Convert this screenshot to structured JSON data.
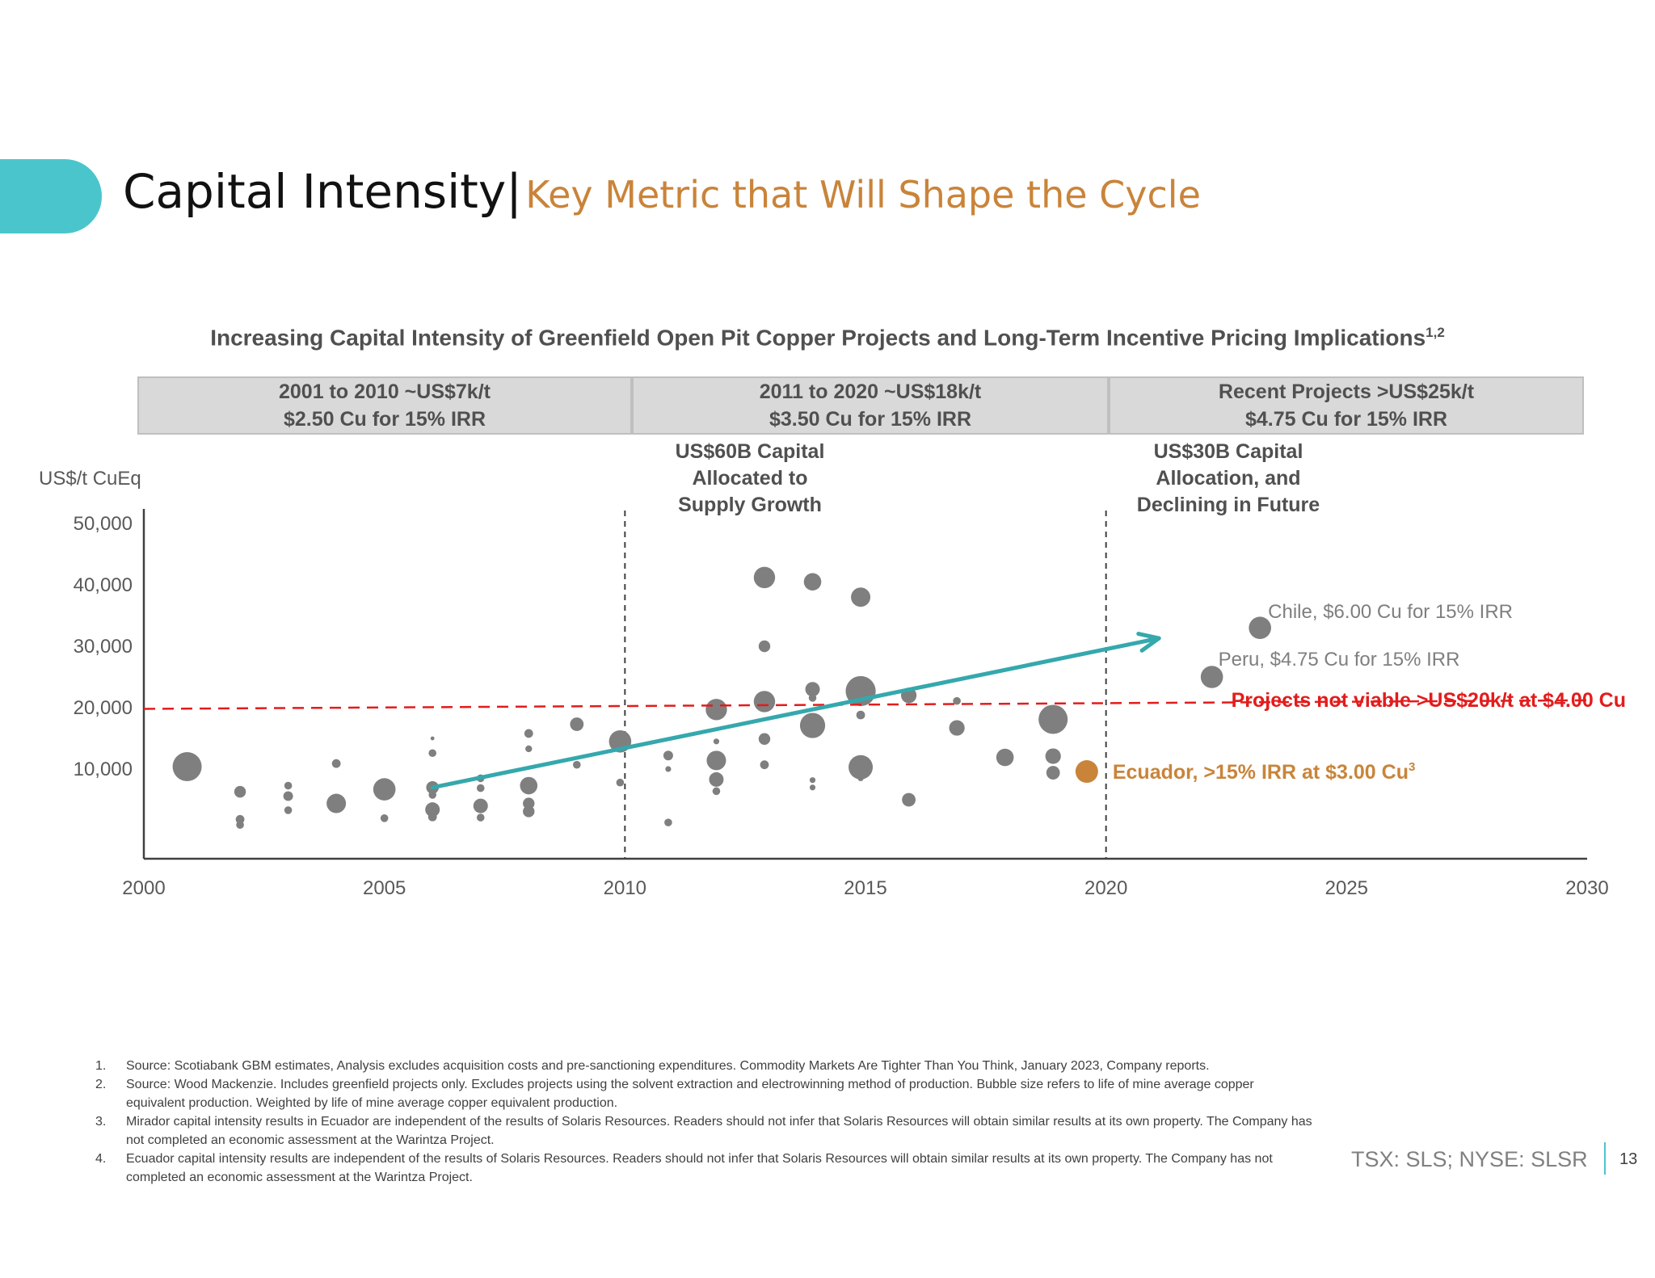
{
  "header": {
    "title": "Capital Intensity|",
    "subtitle": "Key Metric that Will Shape the Cycle"
  },
  "chart_title": "Increasing Capital Intensity of Greenfield Open Pit Copper Projects and Long-Term Incentive Pricing Implications",
  "chart_title_sup": "1,2",
  "bands": [
    {
      "line1": "2001 to 2010 ~US$7k/t",
      "line2": "$2.50 Cu for 15% IRR"
    },
    {
      "line1": "2011 to 2020 ~US$18k/t",
      "line2": "$3.50 Cu for 15% IRR"
    },
    {
      "line1": "Recent Projects >US$25k/t",
      "line2": "$4.75 Cu for 15% IRR"
    }
  ],
  "notes": [
    {
      "lines": [
        "US$60B Capital",
        "Allocated to",
        "Supply Growth"
      ]
    },
    {
      "lines": [
        "US$30B Capital",
        "Allocation, and",
        "Declining in Future"
      ]
    }
  ],
  "chart_data": {
    "type": "scatter",
    "title": "Increasing Capital Intensity of Greenfield Open Pit Copper Projects and Long-Term Incentive Pricing Implications",
    "ylabel": "US$/t CuEq",
    "xlabel": "",
    "xlim": [
      2000,
      2030
    ],
    "ylim": [
      0,
      50000
    ],
    "x_ticks": [
      2000,
      2005,
      2010,
      2015,
      2020,
      2025,
      2030
    ],
    "y_ticks": [
      10000,
      20000,
      30000,
      40000,
      50000
    ],
    "y_tick_labels": [
      "10,000",
      "20,000",
      "30,000",
      "40,000",
      "50,000"
    ],
    "grid": false,
    "bubble_color": "#7f7f7f",
    "series": [
      {
        "points": [
          {
            "x": 2000.9,
            "y": 10400,
            "s": 3
          },
          {
            "x": 2002.0,
            "y": 6300,
            "s": 1.2
          },
          {
            "x": 2002.0,
            "y": 1800,
            "s": 0.9
          },
          {
            "x": 2002.0,
            "y": 900,
            "s": 0.8
          },
          {
            "x": 2003.0,
            "y": 7300,
            "s": 0.8
          },
          {
            "x": 2003.0,
            "y": 5600,
            "s": 1
          },
          {
            "x": 2003.0,
            "y": 3300,
            "s": 0.8
          },
          {
            "x": 2004.0,
            "y": 10900,
            "s": 0.9
          },
          {
            "x": 2004.0,
            "y": 4400,
            "s": 2
          },
          {
            "x": 2005.0,
            "y": 6700,
            "s": 2.3
          },
          {
            "x": 2005.0,
            "y": 2000,
            "s": 0.8
          },
          {
            "x": 2006.0,
            "y": 15000,
            "s": 0.4
          },
          {
            "x": 2006.0,
            "y": 12600,
            "s": 0.8
          },
          {
            "x": 2006.0,
            "y": 7000,
            "s": 1.3
          },
          {
            "x": 2006.0,
            "y": 5800,
            "s": 0.8
          },
          {
            "x": 2006.0,
            "y": 3400,
            "s": 1.5
          },
          {
            "x": 2006.0,
            "y": 2200,
            "s": 0.9
          },
          {
            "x": 2007.0,
            "y": 8500,
            "s": 0.8
          },
          {
            "x": 2007.0,
            "y": 6900,
            "s": 0.8
          },
          {
            "x": 2007.0,
            "y": 4000,
            "s": 1.5
          },
          {
            "x": 2007.0,
            "y": 2100,
            "s": 0.8
          },
          {
            "x": 2008.0,
            "y": 15800,
            "s": 0.9
          },
          {
            "x": 2008.0,
            "y": 13300,
            "s": 0.7
          },
          {
            "x": 2008.0,
            "y": 7300,
            "s": 1.8
          },
          {
            "x": 2008.0,
            "y": 4400,
            "s": 1.2
          },
          {
            "x": 2008.0,
            "y": 3100,
            "s": 1.2
          },
          {
            "x": 2009.0,
            "y": 17300,
            "s": 1.4
          },
          {
            "x": 2009.0,
            "y": 10700,
            "s": 0.8
          },
          {
            "x": 2009.9,
            "y": 14500,
            "s": 2.3
          },
          {
            "x": 2009.9,
            "y": 7800,
            "s": 0.8
          },
          {
            "x": 2010.9,
            "y": 12200,
            "s": 1
          },
          {
            "x": 2010.9,
            "y": 10000,
            "s": 0.6
          },
          {
            "x": 2010.9,
            "y": 1300,
            "s": 0.8
          },
          {
            "x": 2011.9,
            "y": 19700,
            "s": 2.2
          },
          {
            "x": 2011.9,
            "y": 14500,
            "s": 0.6
          },
          {
            "x": 2011.9,
            "y": 11400,
            "s": 2
          },
          {
            "x": 2011.9,
            "y": 8300,
            "s": 1.5
          },
          {
            "x": 2011.9,
            "y": 6400,
            "s": 0.8
          },
          {
            "x": 2012.9,
            "y": 41200,
            "s": 2.2
          },
          {
            "x": 2012.9,
            "y": 30000,
            "s": 1.2
          },
          {
            "x": 2012.9,
            "y": 21000,
            "s": 2.2
          },
          {
            "x": 2012.9,
            "y": 14900,
            "s": 1.2
          },
          {
            "x": 2012.9,
            "y": 10700,
            "s": 0.9
          },
          {
            "x": 2013.9,
            "y": 40500,
            "s": 1.8
          },
          {
            "x": 2013.9,
            "y": 23000,
            "s": 1.5
          },
          {
            "x": 2013.9,
            "y": 21600,
            "s": 0.8
          },
          {
            "x": 2013.9,
            "y": 17100,
            "s": 2.6
          },
          {
            "x": 2013.9,
            "y": 8200,
            "s": 0.6
          },
          {
            "x": 2013.9,
            "y": 7000,
            "s": 0.6
          },
          {
            "x": 2014.9,
            "y": 38000,
            "s": 2
          },
          {
            "x": 2014.9,
            "y": 22700,
            "s": 3.1
          },
          {
            "x": 2014.9,
            "y": 18800,
            "s": 0.9
          },
          {
            "x": 2014.9,
            "y": 10300,
            "s": 2.5
          },
          {
            "x": 2014.9,
            "y": 8500,
            "s": 0.6
          },
          {
            "x": 2015.9,
            "y": 22000,
            "s": 1.6
          },
          {
            "x": 2015.9,
            "y": 5000,
            "s": 1.4
          },
          {
            "x": 2016.9,
            "y": 21100,
            "s": 0.8
          },
          {
            "x": 2016.9,
            "y": 16700,
            "s": 1.6
          },
          {
            "x": 2017.9,
            "y": 11900,
            "s": 1.8
          },
          {
            "x": 2018.9,
            "y": 18100,
            "s": 3
          },
          {
            "x": 2018.9,
            "y": 12100,
            "s": 1.6
          },
          {
            "x": 2018.9,
            "y": 9400,
            "s": 1.4
          },
          {
            "x": 2022.2,
            "y": 25000,
            "s": 2.3
          },
          {
            "x": 2023.2,
            "y": 33000,
            "s": 2.3
          }
        ]
      }
    ],
    "highlight": {
      "label": "Ecuador, >15% IRR at $3.00 Cu",
      "sup": "3",
      "x": 2019.6,
      "y": 9600,
      "color": "#c9843a"
    },
    "annotations": [
      {
        "label": "Chile, $6.00 Cu for 15% IRR",
        "x": 2023.2,
        "y": 33000
      },
      {
        "label": "Peru, $4.75 Cu for 15% IRR",
        "x": 2022.2,
        "y": 25000
      }
    ],
    "threshold": {
      "label": "Projects not viable >US$20k/t at $4.00 Cu",
      "color": "#e31c1c",
      "from": {
        "x": 2000,
        "y": 19800
      },
      "to": {
        "x": 2030,
        "y": 21200
      }
    },
    "trend": {
      "color": "#35a8ad",
      "from": {
        "x": 2006,
        "y": 7000
      },
      "to": {
        "x": 2021.1,
        "y": 31300
      }
    },
    "vlines": [
      2010,
      2020
    ]
  },
  "footnotes": [
    {
      "num": "1.",
      "text": "Source: Scotiabank GBM estimates, Analysis excludes acquisition costs and pre-sanctioning expenditures. Commodity Markets Are Tighter Than You Think, January 2023, Company reports."
    },
    {
      "num": "2.",
      "text": "Source: Wood Mackenzie. Includes greenfield projects only. Excludes projects using the solvent extraction and electrowinning method of production. Bubble size refers to life of mine average copper equivalent production. Weighted by life of mine average copper equivalent production."
    },
    {
      "num": "3.",
      "text": "Mirador capital intensity results in Ecuador are independent of the results of Solaris Resources. Readers should not infer that Solaris Resources will obtain similar results at its own property. The Company has not completed an economic assessment at the Warintza Project."
    },
    {
      "num": "4.",
      "text": "Ecuador capital intensity results are independent of the results of Solaris Resources. Readers should not infer that Solaris Resources will obtain similar results at its own property. The Company has not completed an economic assessment at the Warintza Project."
    }
  ],
  "footer": {
    "ticker": "TSX: SLS; NYSE: SLSR",
    "page": "13"
  }
}
